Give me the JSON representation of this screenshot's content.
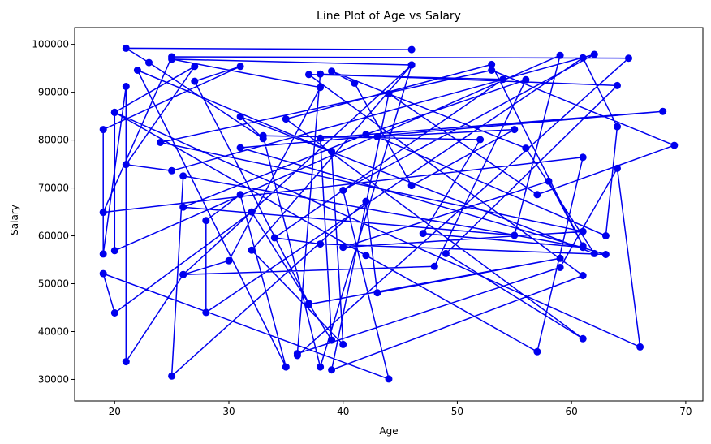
{
  "chart_data": {
    "type": "line",
    "title": "Line Plot of Age vs Salary",
    "xlabel": "Age",
    "ylabel": "Salary",
    "xlim": [
      16.5,
      71.5
    ],
    "ylim": [
      25500,
      103500
    ],
    "xticks": [
      20,
      30,
      40,
      50,
      60,
      70
    ],
    "yticks": [
      30000,
      40000,
      50000,
      60000,
      70000,
      80000,
      90000,
      100000
    ],
    "grid": false,
    "legend": "none",
    "series": [
      {
        "color": "#0000ee",
        "marker": "circle",
        "x": [
          46,
          21,
          23,
          33,
          31,
          62,
          56,
          39,
          41,
          46,
          55,
          43,
          63,
          64,
          61,
          28,
          28,
          31,
          35,
          22,
          39,
          40,
          32,
          46,
          38,
          33,
          52,
          47,
          61,
          26,
          25,
          42,
          43,
          59,
          37,
          37,
          27,
          31,
          19,
          19,
          21,
          21,
          26,
          46,
          25,
          38,
          30,
          26,
          48,
          56,
          42,
          26,
          55,
          59,
          20,
          20,
          27,
          21,
          25,
          62,
          40,
          44,
          19,
          20,
          32,
          39,
          38,
          68,
          31,
          63,
          38,
          34,
          54,
          37,
          61,
          39,
          44,
          57,
          69,
          53,
          24,
          61,
          40,
          58,
          61,
          53,
          35,
          61,
          49,
          64,
          38,
          36,
          59,
          64,
          66,
          20,
          42,
          57,
          61,
          19,
          25,
          65,
          36
        ],
        "y": [
          98900,
          99200,
          96200,
          80300,
          84900,
          56300,
          78300,
          94400,
          91900,
          70500,
          82200,
          80700,
          60000,
          82800,
          97200,
          44000,
          63200,
          68600,
          32600,
          94600,
          77600,
          37300,
          57000,
          95700,
          32600,
          80900,
          80100,
          60500,
          57600,
          72500,
          30700,
          67200,
          48100,
          55300,
          45700,
          45900,
          92300,
          95400,
          82200,
          56200,
          91200,
          33700,
          51900,
          95700,
          96900,
          91000,
          54800,
          51900,
          53600,
          92600,
          81200,
          66000,
          60100,
          97700,
          56900,
          85800,
          95400,
          74900,
          73600,
          97900,
          69500,
          30100,
          52100,
          43900,
          65000,
          38200,
          80400,
          86000,
          78400,
          56100,
          58300,
          59600,
          92700,
          93700,
          51700,
          32000,
          89700,
          68600,
          78900,
          94600,
          79500,
          60900,
          57600,
          71400,
          57900,
          95800,
          84400,
          38500,
          56300,
          91400,
          93800,
          35400,
          53400,
          74100,
          36800,
          85800,
          55900,
          35800,
          76400,
          64900,
          97400,
          97100,
          35000
        ]
      }
    ]
  }
}
